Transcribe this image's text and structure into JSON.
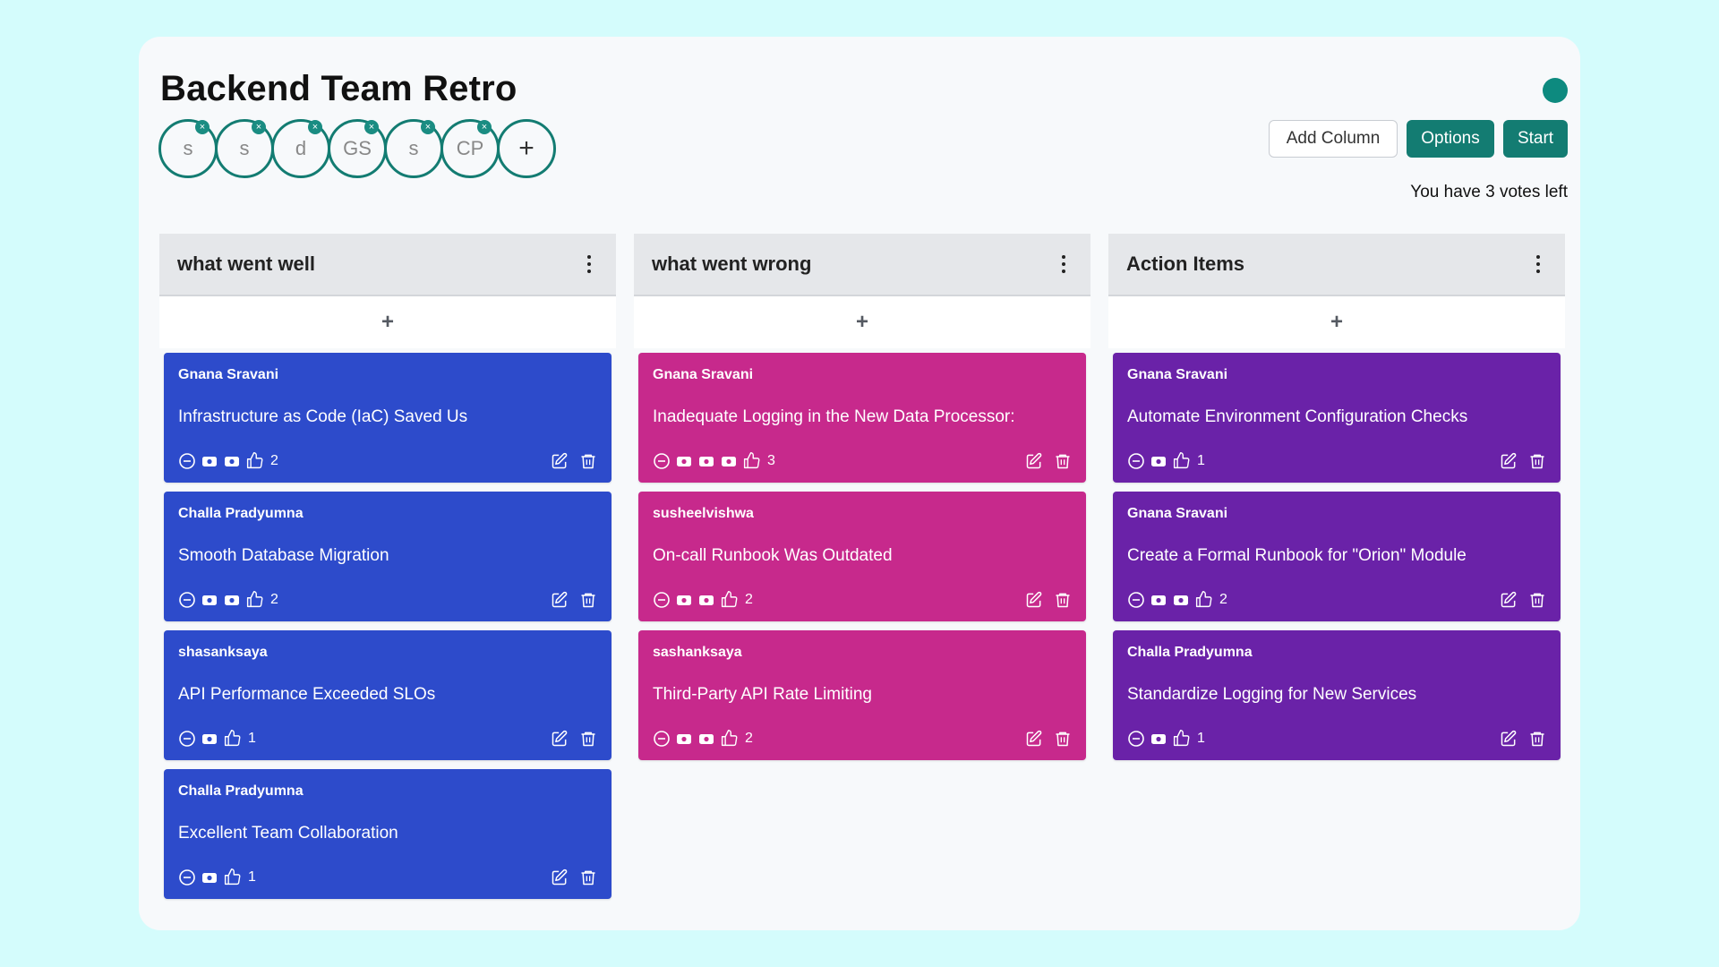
{
  "title": "Backend Team Retro",
  "colors": {
    "accent": "#137c72",
    "well": "#2d4bcb",
    "wrong": "#c7298c",
    "action": "#6a22a8"
  },
  "participants": [
    "s",
    "s",
    "d",
    "GS",
    "s",
    "CP"
  ],
  "add_participant": "+",
  "buttons": {
    "add_column": "Add Column",
    "options": "Options",
    "start": "Start"
  },
  "votes_left": "You have 3 votes left",
  "add_card_symbol": "+",
  "columns": [
    {
      "title": "what went well",
      "color": "#2d4bcb",
      "cards": [
        {
          "author": "Gnana Sravani",
          "text": "Infrastructure as Code (IaC) Saved Us",
          "vote_tokens": 2,
          "votes": "2"
        },
        {
          "author": "Challa Pradyumna",
          "text": "Smooth Database Migration",
          "vote_tokens": 2,
          "votes": "2"
        },
        {
          "author": "shasanksaya",
          "text": "API Performance Exceeded SLOs",
          "vote_tokens": 1,
          "votes": "1"
        },
        {
          "author": "Challa Pradyumna",
          "text": "Excellent Team Collaboration",
          "vote_tokens": 1,
          "votes": "1"
        }
      ]
    },
    {
      "title": "what went wrong",
      "color": "#c7298c",
      "cards": [
        {
          "author": "Gnana Sravani",
          "text": "Inadequate Logging in the New Data Processor:",
          "vote_tokens": 3,
          "votes": "3"
        },
        {
          "author": "susheelvishwa",
          "text": "On-call Runbook Was Outdated",
          "vote_tokens": 2,
          "votes": "2"
        },
        {
          "author": "sashanksaya",
          "text": "Third-Party API Rate Limiting",
          "vote_tokens": 2,
          "votes": "2"
        }
      ]
    },
    {
      "title": "Action Items",
      "color": "#6a22a8",
      "cards": [
        {
          "author": "Gnana Sravani",
          "text": "Automate Environment Configuration Checks",
          "vote_tokens": 1,
          "votes": "1"
        },
        {
          "author": "Gnana Sravani",
          "text": "Create a Formal Runbook for \"Orion\" Module",
          "vote_tokens": 2,
          "votes": "2"
        },
        {
          "author": "Challa Pradyumna",
          "text": "Standardize Logging for New Services",
          "vote_tokens": 1,
          "votes": "1"
        }
      ]
    }
  ]
}
